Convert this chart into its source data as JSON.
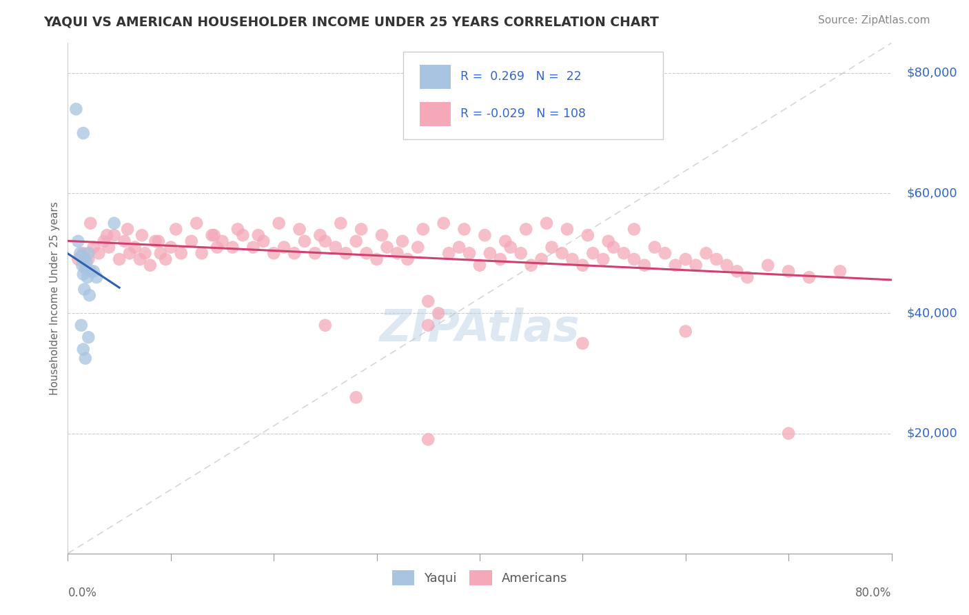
{
  "title": "YAQUI VS AMERICAN HOUSEHOLDER INCOME UNDER 25 YEARS CORRELATION CHART",
  "source": "Source: ZipAtlas.com",
  "ylabel": "Householder Income Under 25 years",
  "xlim": [
    0.0,
    80.0
  ],
  "ylim": [
    0,
    85000
  ],
  "yticks": [
    20000,
    40000,
    60000,
    80000
  ],
  "ytick_labels": [
    "$20,000",
    "$40,000",
    "$60,000",
    "$80,000"
  ],
  "yaqui_R": 0.269,
  "yaqui_N": 22,
  "american_R": -0.029,
  "american_N": 108,
  "legend_label1": "Yaqui",
  "legend_label2": "Americans",
  "watermark": "ZIPAtlas",
  "blue_color": "#a8c4e0",
  "pink_color": "#f4a8b8",
  "blue_line_color": "#3060b0",
  "pink_line_color": "#d04070",
  "legend_text_color": "#3366cc",
  "yaqui_x": [
    0.8,
    1.5,
    1.0,
    1.2,
    2.0,
    1.3,
    1.6,
    1.8,
    1.4,
    1.7,
    2.2,
    2.5,
    1.5,
    1.9,
    2.8,
    1.6,
    2.1,
    1.3,
    2.0,
    1.5,
    1.7,
    4.5
  ],
  "yaqui_y": [
    74000,
    70000,
    52000,
    50000,
    50000,
    49500,
    49000,
    48500,
    48000,
    47500,
    47000,
    47000,
    46500,
    46000,
    46000,
    44000,
    43000,
    38000,
    36000,
    34000,
    32500,
    55000
  ],
  "american_x": [
    1.0,
    1.5,
    2.0,
    2.5,
    3.0,
    3.5,
    4.0,
    4.5,
    5.0,
    5.5,
    6.0,
    6.5,
    7.0,
    7.5,
    8.0,
    8.5,
    9.0,
    9.5,
    10.0,
    11.0,
    12.0,
    13.0,
    14.0,
    14.5,
    15.0,
    16.0,
    17.0,
    18.0,
    19.0,
    20.0,
    21.0,
    22.0,
    23.0,
    24.0,
    25.0,
    26.0,
    27.0,
    28.0,
    29.0,
    30.0,
    31.0,
    32.0,
    33.0,
    34.0,
    35.0,
    36.0,
    37.0,
    38.0,
    39.0,
    40.0,
    41.0,
    42.0,
    43.0,
    44.0,
    45.0,
    46.0,
    47.0,
    48.0,
    49.0,
    50.0,
    51.0,
    52.0,
    53.0,
    54.0,
    55.0,
    56.0,
    57.0,
    58.0,
    59.0,
    60.0,
    61.0,
    62.0,
    63.0,
    64.0,
    65.0,
    66.0,
    68.0,
    70.0,
    72.0,
    75.0,
    2.2,
    3.8,
    5.8,
    7.2,
    8.8,
    10.5,
    12.5,
    14.2,
    16.5,
    18.5,
    20.5,
    22.5,
    24.5,
    26.5,
    28.5,
    30.5,
    32.5,
    34.5,
    36.5,
    38.5,
    40.5,
    42.5,
    44.5,
    46.5,
    48.5,
    50.5,
    52.5,
    55.0
  ],
  "american_y": [
    49000,
    50000,
    49000,
    51000,
    50000,
    52000,
    51000,
    53000,
    49000,
    52000,
    50000,
    51000,
    49000,
    50000,
    48000,
    52000,
    50000,
    49000,
    51000,
    50000,
    52000,
    50000,
    53000,
    51000,
    52000,
    51000,
    53000,
    51000,
    52000,
    50000,
    51000,
    50000,
    52000,
    50000,
    52000,
    51000,
    50000,
    52000,
    50000,
    49000,
    51000,
    50000,
    49000,
    51000,
    38000,
    40000,
    50000,
    51000,
    50000,
    48000,
    50000,
    49000,
    51000,
    50000,
    48000,
    49000,
    51000,
    50000,
    49000,
    48000,
    50000,
    49000,
    51000,
    50000,
    49000,
    48000,
    51000,
    50000,
    48000,
    49000,
    48000,
    50000,
    49000,
    48000,
    47000,
    46000,
    48000,
    47000,
    46000,
    47000,
    55000,
    53000,
    54000,
    53000,
    52000,
    54000,
    55000,
    53000,
    54000,
    53000,
    55000,
    54000,
    53000,
    55000,
    54000,
    53000,
    52000,
    54000,
    55000,
    54000,
    53000,
    52000,
    54000,
    55000,
    54000,
    53000,
    52000,
    54000
  ],
  "american_x_outliers": [
    28.0,
    35.0,
    50.0,
    60.0,
    70.0,
    35.0,
    25.0
  ],
  "american_y_outliers": [
    26000,
    19000,
    35000,
    37000,
    20000,
    42000,
    38000
  ]
}
